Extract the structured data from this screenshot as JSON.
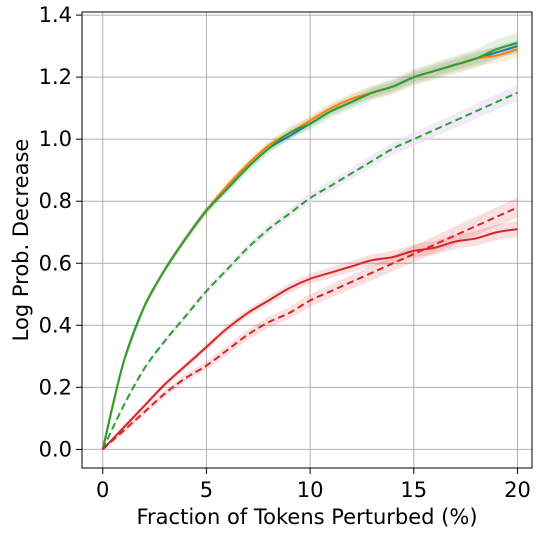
{
  "chart_data": {
    "type": "line",
    "title": "",
    "xlabel": "Fraction of Tokens Perturbed (%)",
    "ylabel": "Log Prob. Decrease",
    "xlim": [
      -1,
      20.7
    ],
    "ylim": [
      -0.06,
      1.41
    ],
    "xticks": [
      0,
      5,
      10,
      15,
      20
    ],
    "yticks": [
      0.0,
      0.2,
      0.4,
      0.6,
      0.8,
      1.0,
      1.2,
      1.4
    ],
    "xtick_labels": [
      "0",
      "5",
      "10",
      "15",
      "20"
    ],
    "ytick_labels": [
      "0.0",
      "0.2",
      "0.4",
      "0.6",
      "0.8",
      "1.0",
      "1.2",
      "1.4"
    ],
    "grid": true,
    "legend": "none",
    "x": [
      0,
      1,
      2,
      3,
      4,
      5,
      6,
      7,
      8,
      9,
      10,
      11,
      12,
      13,
      14,
      15,
      16,
      17,
      18,
      19,
      20
    ],
    "series": [
      {
        "color": "#1f77b4",
        "dash": "solid",
        "band": 0.015,
        "values": [
          0.0,
          0.28,
          0.46,
          0.58,
          0.68,
          0.77,
          0.84,
          0.91,
          0.97,
          1.01,
          1.05,
          1.09,
          1.12,
          1.15,
          1.17,
          1.2,
          1.22,
          1.24,
          1.26,
          1.28,
          1.3
        ]
      },
      {
        "color": "#ff7f0e",
        "dash": "solid",
        "band": 0.02,
        "values": [
          0.0,
          0.28,
          0.46,
          0.58,
          0.68,
          0.77,
          0.85,
          0.92,
          0.98,
          1.02,
          1.06,
          1.1,
          1.13,
          1.15,
          1.17,
          1.2,
          1.22,
          1.24,
          1.26,
          1.27,
          1.29
        ]
      },
      {
        "color": "#2ca02c",
        "dash": "solid",
        "band": 0.025,
        "values": [
          0.0,
          0.28,
          0.46,
          0.58,
          0.68,
          0.77,
          0.84,
          0.91,
          0.97,
          1.02,
          1.05,
          1.09,
          1.12,
          1.15,
          1.17,
          1.2,
          1.22,
          1.24,
          1.26,
          1.29,
          1.31
        ]
      },
      {
        "color": "#2ca02c",
        "dash": "dashed",
        "band": 0.02,
        "bandColor": "#e6dcf5",
        "values": [
          0.0,
          0.14,
          0.26,
          0.35,
          0.43,
          0.51,
          0.58,
          0.65,
          0.71,
          0.76,
          0.81,
          0.85,
          0.89,
          0.93,
          0.97,
          1.0,
          1.03,
          1.06,
          1.09,
          1.12,
          1.15
        ]
      },
      {
        "color": "#d62728",
        "dash": "solid",
        "band": 0.02,
        "values": [
          0.0,
          0.07,
          0.14,
          0.21,
          0.27,
          0.33,
          0.39,
          0.44,
          0.48,
          0.52,
          0.55,
          0.57,
          0.59,
          0.61,
          0.62,
          0.64,
          0.65,
          0.67,
          0.68,
          0.7,
          0.71
        ]
      },
      {
        "color": "#d62728",
        "dash": "dashed",
        "band": 0.025,
        "values": [
          0.0,
          0.06,
          0.12,
          0.18,
          0.23,
          0.27,
          0.32,
          0.37,
          0.41,
          0.44,
          0.48,
          0.51,
          0.54,
          0.57,
          0.6,
          0.63,
          0.66,
          0.69,
          0.72,
          0.75,
          0.78
        ]
      }
    ]
  }
}
